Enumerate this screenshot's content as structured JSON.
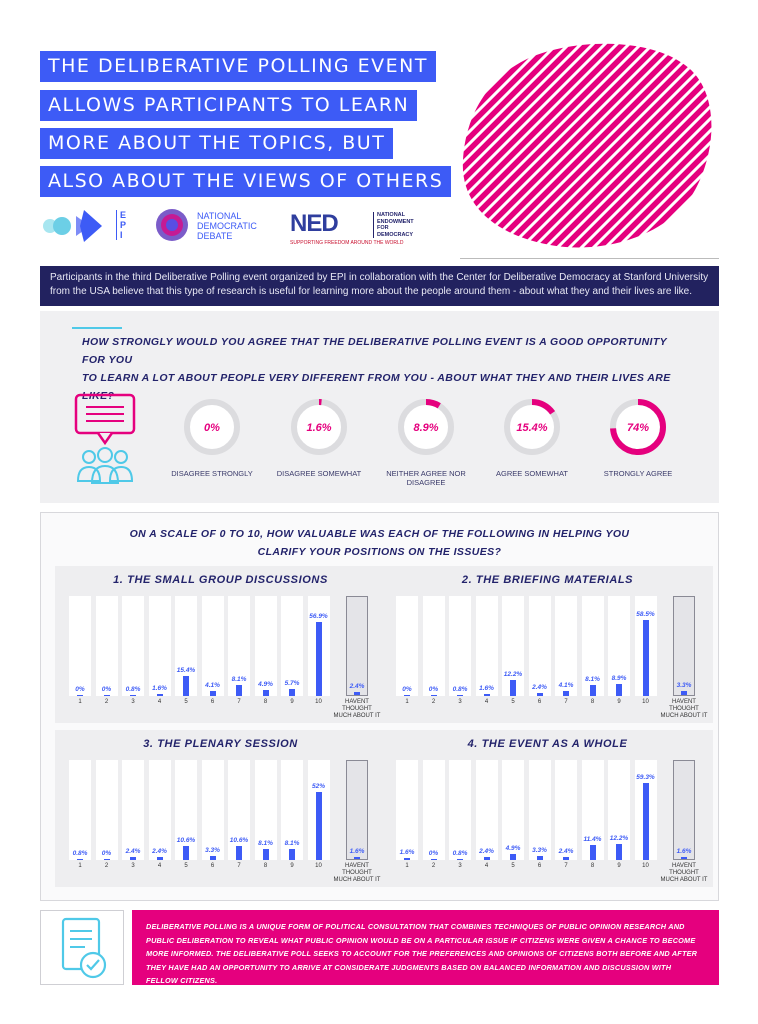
{
  "header": {
    "title_lines": [
      "THE DELIBERATIVE POLLING EVENT",
      "ALLOWS PARTICIPANTS TO LEARN",
      "MORE ABOUT THE TOPICS, BUT",
      "ALSO ABOUT THE VIEWS OF OTHERS"
    ],
    "logos": {
      "epi": "EPI",
      "ndd_line1": "NATIONAL",
      "ndd_line2": "DEMOCRATIC",
      "ndd_line3": "DEBATE",
      "ned": "NED",
      "ned_full1": "NATIONAL",
      "ned_full2": "ENDOWMENT",
      "ned_full3": "FOR",
      "ned_full4": "DEMOCRACY",
      "ned_tagline": "SUPPORTING FREEDOM AROUND THE WORLD"
    },
    "accent_color": "#e5007e"
  },
  "intro": "Participants in the third Deliberative Polling event organized by EPI in collaboration with the Center for Deliberative Democracy at Stanford University from the USA believe that this type of research is useful for learning more about the people around them - about what they and their lives are like.",
  "question1": {
    "text_line1": "HOW STRONGLY WOULD YOU AGREE THAT THE DELIBERATIVE POLLING EVENT IS A GOOD OPPORTUNITY FOR YOU",
    "text_line2": "TO LEARN A LOT ABOUT PEOPLE VERY DIFFERENT FROM YOU - ABOUT WHAT THEY AND THEIR LIVES ARE LIKE?",
    "answers": [
      {
        "label": "DISAGREE STRONGLY",
        "value_text": "0%"
      },
      {
        "label": "DISAGREE SOMEWHAT",
        "value_text": "1.6%"
      },
      {
        "label": "NEITHER AGREE NOR DISAGREE",
        "value_text": "8.9%"
      },
      {
        "label": "AGREE SOMEWHAT",
        "value_text": "15.4%"
      },
      {
        "label": "STRONGLY AGREE",
        "value_text": "74%"
      }
    ]
  },
  "question2": {
    "title_line1": "ON A SCALE OF 0 TO 10, HOW VALUABLE WAS EACH OF THE FOLLOWING IN HELPING YOU",
    "title_line2": "CLARIFY YOUR POSITIONS ON THE ISSUES?",
    "x_labels": [
      "1",
      "2",
      "3",
      "4",
      "5",
      "6",
      "7",
      "8",
      "9",
      "10"
    ],
    "last_label_line1": "HAVENT THOUGHT",
    "last_label_line2": "MUCH ABOUT IT"
  },
  "chart_data": [
    {
      "type": "bar",
      "title": "1. THE SMALL GROUP DISCUSSIONS",
      "categories": [
        "1",
        "2",
        "3",
        "4",
        "5",
        "6",
        "7",
        "8",
        "9",
        "10",
        "HAVENT THOUGHT MUCH ABOUT IT"
      ],
      "values": [
        0,
        0,
        0.8,
        1.6,
        15.4,
        4.1,
        8.1,
        4.9,
        5.7,
        56.9,
        2.4
      ],
      "labels": [
        "0%",
        "0%",
        "0.8%",
        "1.6%",
        "15.4%",
        "4.1%",
        "8.1%",
        "4.9%",
        "5.7%",
        "56.9%",
        "2.4%"
      ]
    },
    {
      "type": "bar",
      "title": "2. THE BRIEFING MATERIALS",
      "categories": [
        "1",
        "2",
        "3",
        "4",
        "5",
        "6",
        "7",
        "8",
        "9",
        "10",
        "HAVENT THOUGHT MUCH ABOUT IT"
      ],
      "values": [
        0,
        0,
        0.8,
        1.6,
        12.2,
        2.4,
        4.1,
        8.1,
        8.9,
        58.5,
        3.3
      ],
      "labels": [
        "0%",
        "0%",
        "0.8%",
        "1.6%",
        "12.2%",
        "2.4%",
        "4.1%",
        "8.1%",
        "8.9%",
        "58.5%",
        "3.3%"
      ]
    },
    {
      "type": "bar",
      "title": "3. THE PLENARY SESSION",
      "categories": [
        "1",
        "2",
        "3",
        "4",
        "5",
        "6",
        "7",
        "8",
        "9",
        "10",
        "HAVENT THOUGHT MUCH ABOUT IT"
      ],
      "values": [
        0.8,
        0,
        2.4,
        2.4,
        10.6,
        3.3,
        10.6,
        8.1,
        8.1,
        52,
        1.6
      ],
      "labels": [
        "0.8%",
        "0%",
        "2.4%",
        "2.4%",
        "10.6%",
        "3.3%",
        "10.6%",
        "8.1%",
        "8.1%",
        "52%",
        "1.6%"
      ]
    },
    {
      "type": "bar",
      "title": "4. THE EVENT AS A WHOLE",
      "categories": [
        "1",
        "2",
        "3",
        "4",
        "5",
        "6",
        "7",
        "8",
        "9",
        "10",
        "HAVENT THOUGHT MUCH ABOUT IT"
      ],
      "values": [
        1.6,
        0,
        0.8,
        2.4,
        4.9,
        3.3,
        2.4,
        11.4,
        12.2,
        59.3,
        1.6
      ],
      "labels": [
        "1.6%",
        "0%",
        "0.8%",
        "2.4%",
        "4.9%",
        "3.3%",
        "2.4%",
        "11.4%",
        "12.2%",
        "59.3%",
        "1.6%"
      ]
    }
  ],
  "footer": {
    "text": "DELIBERATIVE POLLING IS A UNIQUE FORM OF POLITICAL CONSULTATION THAT COMBINES TECHNIQUES OF PUBLIC OPINION RESEARCH AND PUBLIC DELIBERATION TO REVEAL WHAT PUBLIC OPINION WOULD BE ON A PARTICULAR ISSUE IF CITIZENS WERE GIVEN A CHANCE TO BECOME MORE INFORMED. THE DELIBERATIVE POLL SEEKS TO ACCOUNT FOR THE PREFERENCES AND OPINIONS OF CITIZENS BOTH BEFORE AND AFTER THEY HAVE HAD AN OPPORTUNITY TO ARRIVE AT CONSIDERATE JUDGMENTS BASED ON BALANCED INFORMATION AND DISCUSSION WITH FELLOW CITIZENS.",
    "icon": "document-check-icon"
  },
  "colors": {
    "blue": "#3d5bf6",
    "navy": "#22225f",
    "magenta": "#e5007e",
    "cyan": "#4fc9e8"
  }
}
